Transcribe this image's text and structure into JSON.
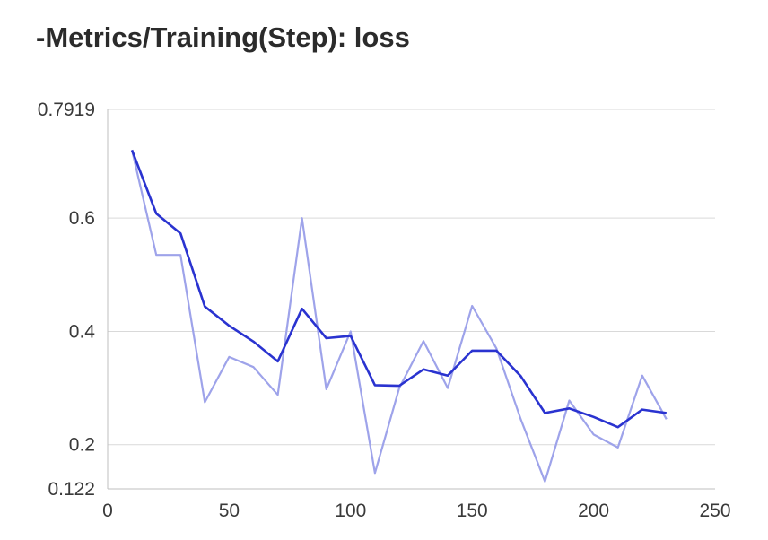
{
  "title": "-Metrics/Training(Step): loss",
  "chart_data": {
    "type": "line",
    "title": "-Metrics/Training(Step): loss",
    "xlabel": "",
    "ylabel": "",
    "xlim": [
      0,
      250
    ],
    "ylim": [
      0.122,
      0.7919
    ],
    "xticks": [
      0,
      50,
      100,
      150,
      200,
      250
    ],
    "yticks": [
      0.122,
      0.2,
      0.4,
      0.6,
      0.7919
    ],
    "ytick_labels": [
      "0.122",
      "0.2",
      "0.4",
      "0.6",
      "0.7919"
    ],
    "grid": "horizontal",
    "legend": "none",
    "series": [
      {
        "values": [
          0.72,
          0.535,
          0.535,
          0.275,
          0.355,
          0.337,
          0.288,
          0.6,
          0.298,
          0.4,
          0.15,
          0.3,
          0.383,
          0.3,
          0.445,
          0.37,
          0.245,
          0.135,
          0.278,
          0.218,
          0.195,
          0.322,
          0.245
        ],
        "color": "#9ea3ea"
      },
      {
        "values": [
          0.72,
          0.608,
          0.573,
          0.444,
          0.41,
          0.382,
          0.347,
          0.44,
          0.388,
          0.392,
          0.305,
          0.304,
          0.333,
          0.322,
          0.366,
          0.366,
          0.321,
          0.256,
          0.264,
          0.249,
          0.231,
          0.262,
          0.256
        ],
        "color": "#2a33d0"
      }
    ],
    "x": [
      10,
      20,
      30,
      40,
      50,
      60,
      70,
      80,
      90,
      100,
      110,
      120,
      130,
      140,
      150,
      160,
      170,
      180,
      190,
      200,
      210,
      220,
      230
    ]
  }
}
